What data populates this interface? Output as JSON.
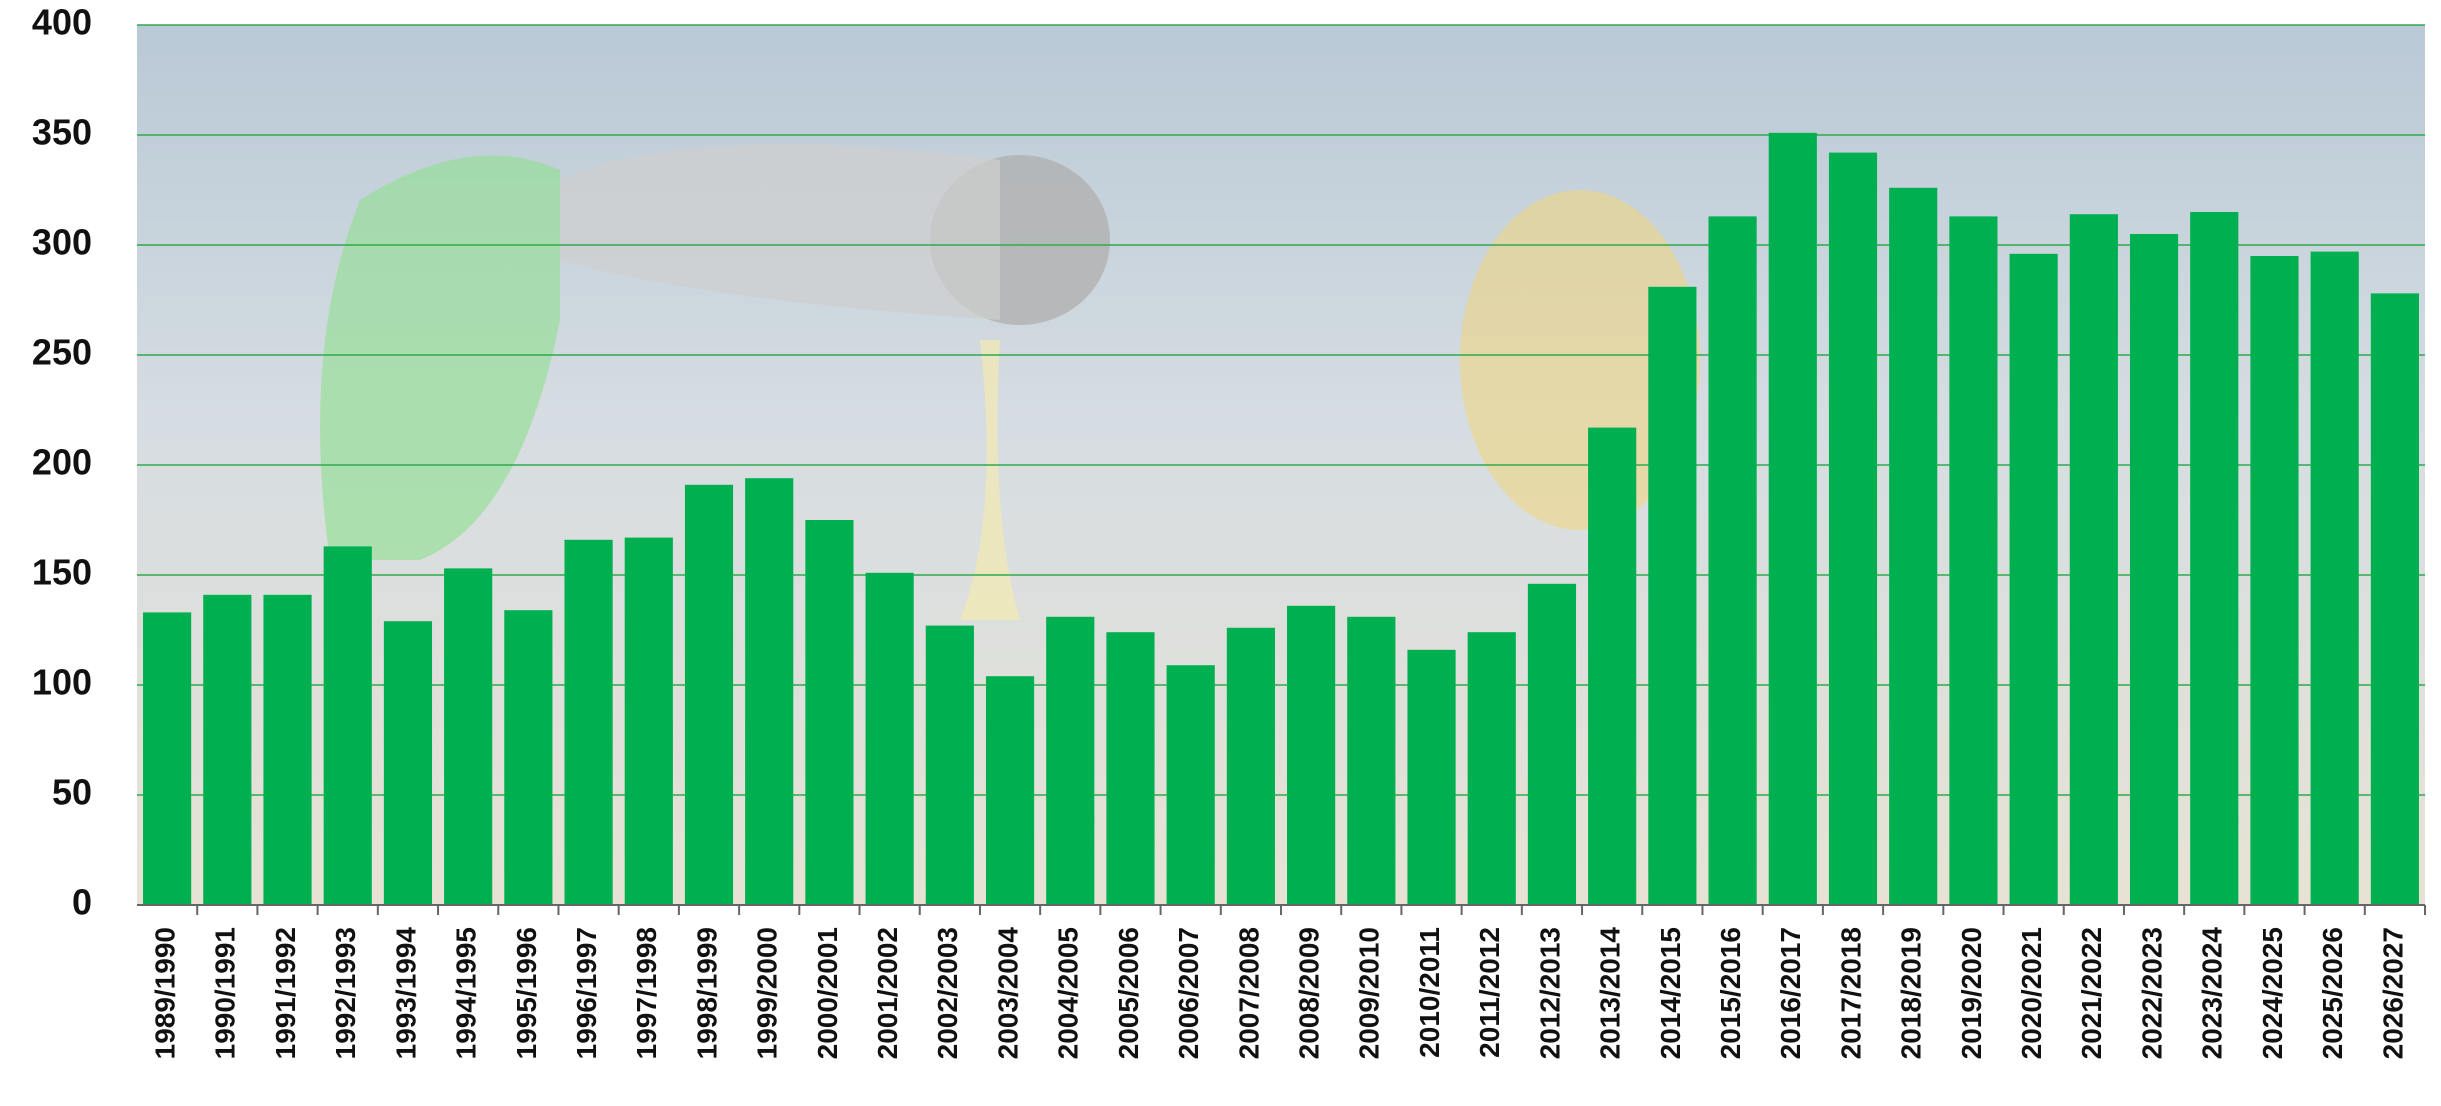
{
  "chart_data": {
    "type": "bar",
    "categories": [
      "1989/1990",
      "1990/1991",
      "1991/1992",
      "1992/1993",
      "1993/1994",
      "1994/1995",
      "1995/1996",
      "1996/1997",
      "1997/1998",
      "1998/1999",
      "1999/2000",
      "2000/2001",
      "2001/2002",
      "2002/2003",
      "2003/2004",
      "2004/2005",
      "2005/2006",
      "2006/2007",
      "2007/2008",
      "2008/2009",
      "2009/2010",
      "2010/2011",
      "2011/2012",
      "2012/2013",
      "2013/2014",
      "2014/2015",
      "2015/2016",
      "2016/2017",
      "2017/2018",
      "2018/2019",
      "2019/2020",
      "2020/2021",
      "2021/2022",
      "2022/2023",
      "2023/2024",
      "2024/2025",
      "2025/2026",
      "2026/2027"
    ],
    "values": [
      133,
      141,
      141,
      163,
      129,
      153,
      134,
      166,
      167,
      191,
      194,
      175,
      151,
      127,
      104,
      131,
      124,
      109,
      126,
      136,
      131,
      116,
      124,
      146,
      217,
      281,
      313,
      351,
      342,
      326,
      313,
      296,
      314,
      305,
      315,
      295,
      297,
      278
    ],
    "color": "#00b050",
    "ylim": [
      0,
      400
    ],
    "yticks": [
      0,
      50,
      100,
      150,
      200,
      250,
      300,
      350,
      400
    ],
    "grid": true,
    "grid_color": "#2eaa4a"
  }
}
